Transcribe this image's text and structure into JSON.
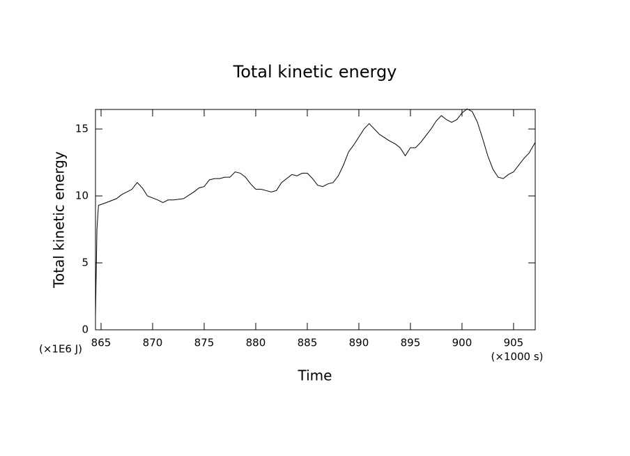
{
  "chart_data": {
    "type": "line",
    "title": "Total kinetic energy",
    "x_label": "Time",
    "y_label": "Total kinetic energy",
    "x_unit": "(×1000 s)",
    "y_unit": "(×1E6 J)",
    "color": "#000000",
    "xlim": [
      864.46,
      907.1
    ],
    "ylim": [
      0,
      16.46
    ],
    "xticks": [
      865,
      870,
      875,
      880,
      885,
      890,
      895,
      900,
      905
    ],
    "yticks": [
      0,
      5,
      10,
      15
    ],
    "x": [
      864.46,
      864.6,
      864.75,
      865.5,
      866.5,
      867,
      867.5,
      868,
      868.5,
      869,
      869.5,
      870.5,
      871,
      871.5,
      872,
      873,
      874,
      874.5,
      875,
      875.5,
      876,
      876.5,
      877,
      877.5,
      878,
      878.5,
      879,
      879.5,
      880,
      880.5,
      881,
      881.5,
      882,
      882.5,
      883,
      883.5,
      884,
      884.5,
      885,
      885.5,
      886,
      886.5,
      887,
      887.5,
      888,
      888.5,
      889,
      889.5,
      890,
      890.5,
      891,
      891.5,
      892,
      893,
      893.5,
      894,
      894.5,
      895,
      895.5,
      896,
      896.5,
      897,
      897.5,
      898,
      898.5,
      899,
      899.5,
      900,
      900.5,
      901,
      901.5,
      902,
      902.5,
      903,
      903.5,
      904,
      904.5,
      905,
      905.5,
      906,
      906.5,
      907.1
    ],
    "values": [
      1.0,
      7.5,
      9.3,
      9.5,
      9.8,
      10.1,
      10.3,
      10.5,
      11.0,
      10.6,
      10.0,
      9.7,
      9.5,
      9.7,
      9.7,
      9.8,
      10.3,
      10.6,
      10.7,
      11.2,
      11.3,
      11.3,
      11.4,
      11.4,
      11.8,
      11.7,
      11.4,
      10.9,
      10.5,
      10.5,
      10.4,
      10.3,
      10.4,
      11.0,
      11.3,
      11.6,
      11.5,
      11.7,
      11.7,
      11.3,
      10.8,
      10.7,
      10.9,
      11.0,
      11.5,
      12.3,
      13.3,
      13.8,
      14.4,
      15.0,
      15.4,
      15.0,
      14.6,
      14.1,
      13.9,
      13.6,
      13.0,
      13.6,
      13.6,
      14.0,
      14.5,
      15.0,
      15.6,
      16.0,
      15.7,
      15.5,
      15.7,
      16.2,
      16.5,
      16.3,
      15.5,
      14.3,
      13.0,
      12.0,
      11.4,
      11.3,
      11.6,
      11.8,
      12.3,
      12.8,
      13.2,
      14.0
    ]
  }
}
